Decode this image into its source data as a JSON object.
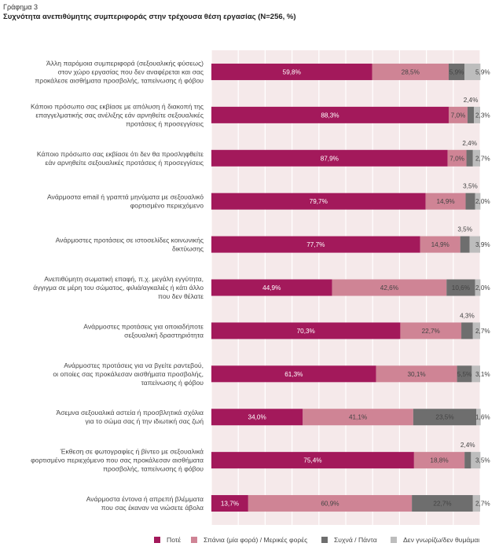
{
  "figure_label": "Γράφημα 3",
  "chart_data": {
    "type": "bar",
    "orientation": "horizontal",
    "stacked": true,
    "title": "Συχνότητα ανεπιθύμητης συμπεριφοράς στην τρέχουσα θέση εργασίας (N=256, %)",
    "xlim": [
      0,
      100
    ],
    "legend_position": "bottom",
    "categories": [
      [
        "Άλλη παρόμοια συμπεριφορά (σεξουαλικής φύσεως)",
        "στον χώρο εργασίας που δεν αναφέρεται και σας",
        "προκάλεσε αισθήματα προσβολής, ταπείνωσης ή φόβου"
      ],
      [
        "Κάποιο πρόσωπο σας εκβίασε με απόλυση ή διακοπή της",
        "επαγγελματικής σας ανέλιξης εάν αρνηθείτε σεξουαλικές",
        "προτάσεις ή προσεγγίσεις"
      ],
      [
        "Κάποιο πρόσωπο σας εκβίασε ότι δεν θα προσληφθείτε",
        "εάν αρνηθείτε σεξουαλικές προτάσεις ή προσεγγίσεις"
      ],
      [
        "Ανάρμοστα email ή γραπτά μηνύματα με σεξουαλικό",
        "φορτισμένο περιεχόμενο"
      ],
      [
        "Ανάρμοστες προτάσεις σε ιστοσελίδες κοινωνικής",
        "δικτύωσης"
      ],
      [
        "Ανεπιθύμητη σωματική επαφή, π.χ. μεγάλη εγγύτητα,",
        "άγγιγμα σε μέρη του σώματος, φιλιά/αγκαλιές ή κάτι άλλο",
        "που δεν θέλατε"
      ],
      [
        "Ανάρμοστες προτάσεις για οποιαδήποτε",
        "σεξουαλική δραστηριότητα"
      ],
      [
        "Ανάρμοστες προτάσεις για να βγείτε ραντεβού,",
        "οι οποίες σας προκάλεσαν αισθήματα προσβολής,",
        "ταπείνωσης ή φόβου"
      ],
      [
        "Άσεμνα σεξουαλικά αστεία ή προσβλητικά σχόλια",
        "για το σώμα σας ή την ιδιωτική σας ζωή"
      ],
      [
        "Έκθεση σε φωτογραφίες ή βίντεο με σεξουαλικά",
        "φορτισμένο περιεχόμενο που σας προκάλεσαν αισθήματα",
        "προσβολής, ταπείνωσης ή φόβου"
      ],
      [
        "Ανάρμοστα έντονα ή απρεπή βλέμματα",
        "που σας έκαναν να νιώσετε άβολα"
      ]
    ],
    "series": [
      {
        "name": "Ποτέ",
        "color": "#a3195b",
        "values": [
          59.8,
          88.3,
          87.9,
          79.7,
          77.7,
          44.9,
          70.3,
          61.3,
          34.0,
          75.4,
          13.7
        ],
        "labels": [
          "59,8%",
          "88,3%",
          "87,9%",
          "79,7%",
          "77,7%",
          "44,9%",
          "70,3%",
          "61,3%",
          "34,0%",
          "75,4%",
          "13,7%"
        ]
      },
      {
        "name": "Σπάνια (μία φορά) / Μερικές φορές",
        "color": "#cf8495",
        "values": [
          28.5,
          7.0,
          7.0,
          14.9,
          14.9,
          42.6,
          22.7,
          30.1,
          41.1,
          18.8,
          60.9
        ],
        "labels": [
          "28,5%",
          "7,0%",
          "7,0%",
          "14,9%",
          "14,9%",
          "42,6%",
          "22,7%",
          "30,1%",
          "41,1%",
          "18,8%",
          "60,9%"
        ]
      },
      {
        "name": "Συχνά / Πάντα",
        "color": "#6e6e6e",
        "values": [
          5.9,
          2.4,
          2.4,
          3.5,
          3.5,
          10.6,
          4.3,
          5.5,
          23.5,
          2.4,
          22.7
        ],
        "labels": [
          "5,9%",
          "2,4%",
          "2,4%",
          "3,5%",
          "3,5%",
          "10,6%",
          "4,3%",
          "5,5%",
          "23,5%",
          "2,4%",
          "22,7%"
        ]
      },
      {
        "name": "Δεν γνωρίζω/δεν θυμάμαι",
        "color": "#bdbdbd",
        "values": [
          5.9,
          2.3,
          2.7,
          2.0,
          3.9,
          2.0,
          2.7,
          3.1,
          1.6,
          3.5,
          2.7
        ],
        "labels": [
          "5,9%",
          "2,3%",
          "2,7%",
          "2,0%",
          "3,9%",
          "2,0%",
          "2,7%",
          "3,1%",
          "1,6%",
          "3,5%",
          "2,7%"
        ]
      }
    ]
  },
  "colors": {
    "plot_background": "#f5e9ea",
    "gridline": "#ffffff",
    "label_on_dark": "#ffffff",
    "label_on_light": "#444444"
  }
}
